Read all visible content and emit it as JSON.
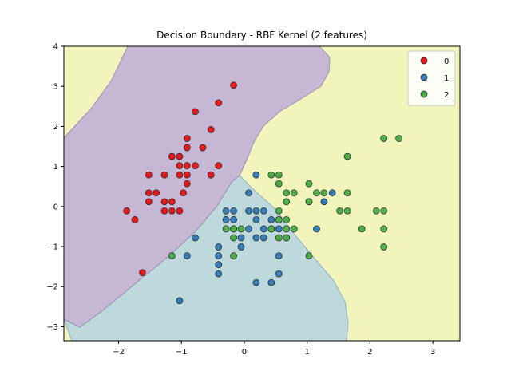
{
  "chart_data": {
    "type": "scatter",
    "title": "Decision Boundary - RBF Kernel (2 features)",
    "xlabel": "",
    "ylabel": "",
    "xlim": [
      -2.87,
      3.43
    ],
    "ylim": [
      -3.35,
      4.0
    ],
    "xticks": [
      -2,
      -1,
      0,
      1,
      2,
      3
    ],
    "yticks": [
      -3,
      -2,
      -1,
      0,
      1,
      2,
      3,
      4
    ],
    "grid": false,
    "legend_position": "top-right",
    "regions": [
      {
        "class": "0",
        "color": "#c6b8d4"
      },
      {
        "class": "1",
        "color": "#bed9dc"
      },
      {
        "class": "2",
        "color": "#f2f5bb"
      }
    ],
    "series": [
      {
        "name": "0",
        "color": "#e41a1c",
        "points": [
          [
            -0.17,
            3.03
          ],
          [
            -0.41,
            2.59
          ],
          [
            -0.78,
            2.37
          ],
          [
            -0.53,
            1.92
          ],
          [
            -0.91,
            1.7
          ],
          [
            -0.91,
            1.47
          ],
          [
            -0.66,
            1.47
          ],
          [
            -1.15,
            1.25
          ],
          [
            -1.03,
            1.25
          ],
          [
            -0.41,
            1.02
          ],
          [
            -1.03,
            1.02
          ],
          [
            -0.91,
            1.02
          ],
          [
            -0.78,
            1.02
          ],
          [
            -1.03,
            0.79
          ],
          [
            -0.91,
            0.79
          ],
          [
            -0.53,
            0.79
          ],
          [
            -1.52,
            0.79
          ],
          [
            -1.27,
            0.79
          ],
          [
            -0.91,
            0.57
          ],
          [
            -1.52,
            0.34
          ],
          [
            -1.4,
            0.34
          ],
          [
            -0.97,
            0.34
          ],
          [
            -1.52,
            0.12
          ],
          [
            -1.27,
            0.12
          ],
          [
            -1.15,
            0.12
          ],
          [
            -1.27,
            -0.11
          ],
          [
            -1.15,
            -0.11
          ],
          [
            -1.03,
            -0.11
          ],
          [
            -1.87,
            -0.11
          ],
          [
            -1.74,
            -0.33
          ],
          [
            -1.62,
            -1.65
          ]
        ]
      },
      {
        "name": "1",
        "color": "#377eb8",
        "points": [
          [
            0.19,
            0.79
          ],
          [
            0.07,
            0.34
          ],
          [
            -0.29,
            -0.11
          ],
          [
            -0.17,
            -0.11
          ],
          [
            0.07,
            -0.11
          ],
          [
            0.19,
            -0.11
          ],
          [
            0.31,
            -0.11
          ],
          [
            -0.29,
            -0.33
          ],
          [
            -0.17,
            -0.33
          ],
          [
            0.19,
            -0.33
          ],
          [
            0.43,
            -0.33
          ],
          [
            0.55,
            -0.33
          ],
          [
            -0.17,
            -0.56
          ],
          [
            0.07,
            -0.56
          ],
          [
            0.31,
            -0.56
          ],
          [
            0.43,
            -0.56
          ],
          [
            0.55,
            -0.56
          ],
          [
            -0.05,
            -0.78
          ],
          [
            0.19,
            -0.78
          ],
          [
            0.31,
            -0.78
          ],
          [
            -0.41,
            -1.01
          ],
          [
            -0.05,
            -1.01
          ],
          [
            -0.41,
            -1.23
          ],
          [
            0.55,
            -1.23
          ],
          [
            -0.41,
            -1.45
          ],
          [
            -0.41,
            -1.68
          ],
          [
            0.55,
            -1.68
          ],
          [
            0.19,
            -1.9
          ],
          [
            0.43,
            -1.9
          ],
          [
            -1.03,
            -2.35
          ],
          [
            -0.78,
            -0.78
          ],
          [
            -0.91,
            -1.23
          ],
          [
            1.03,
            0.12
          ],
          [
            1.27,
            0.12
          ],
          [
            1.4,
            0.34
          ],
          [
            1.15,
            -0.56
          ]
        ]
      },
      {
        "name": "2",
        "color": "#4daf4a",
        "points": [
          [
            2.22,
            1.7
          ],
          [
            2.46,
            1.7
          ],
          [
            1.64,
            1.25
          ],
          [
            0.43,
            0.79
          ],
          [
            0.55,
            0.79
          ],
          [
            1.03,
            0.57
          ],
          [
            0.55,
            0.57
          ],
          [
            0.67,
            0.34
          ],
          [
            0.79,
            0.34
          ],
          [
            1.15,
            0.34
          ],
          [
            1.27,
            0.34
          ],
          [
            1.64,
            0.34
          ],
          [
            0.67,
            0.12
          ],
          [
            1.03,
            0.12
          ],
          [
            0.55,
            -0.11
          ],
          [
            1.52,
            -0.11
          ],
          [
            1.64,
            -0.11
          ],
          [
            2.1,
            -0.11
          ],
          [
            2.22,
            -0.11
          ],
          [
            0.55,
            -0.33
          ],
          [
            0.67,
            -0.33
          ],
          [
            0.43,
            -0.56
          ],
          [
            0.67,
            -0.56
          ],
          [
            0.79,
            -0.56
          ],
          [
            1.87,
            -0.56
          ],
          [
            2.22,
            -0.56
          ],
          [
            -0.29,
            -0.56
          ],
          [
            -0.17,
            -0.56
          ],
          [
            -0.05,
            -0.56
          ],
          [
            -0.17,
            -0.78
          ],
          [
            0.55,
            -0.78
          ],
          [
            0.67,
            -0.78
          ],
          [
            2.22,
            -1.01
          ],
          [
            -1.15,
            -1.23
          ],
          [
            -0.17,
            -1.23
          ],
          [
            1.03,
            -1.23
          ]
        ]
      }
    ]
  }
}
